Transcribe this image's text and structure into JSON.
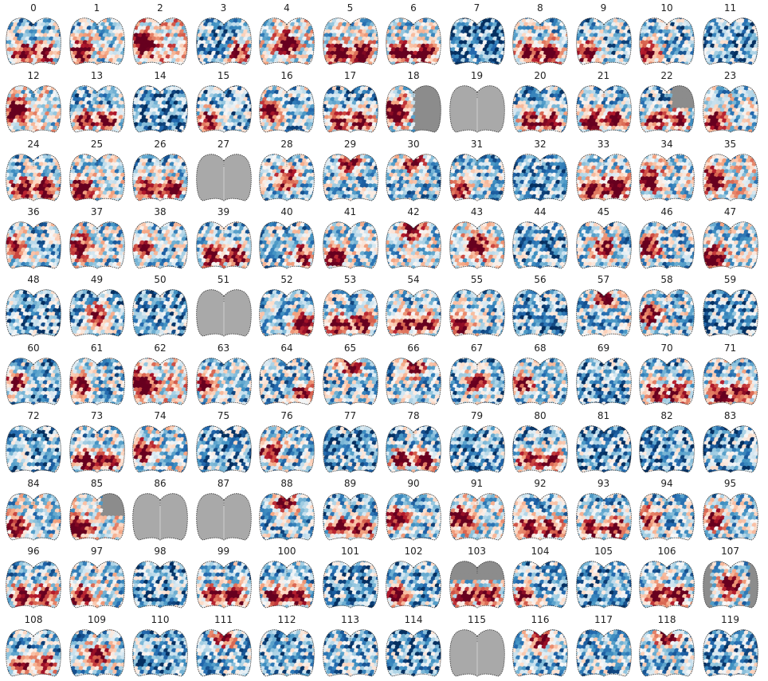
{
  "layout": {
    "columns": 12
  },
  "colormap": {
    "name": "RdBu",
    "stops": [
      "#053061",
      "#2166ac",
      "#4393c3",
      "#92c5de",
      "#d1e5f0",
      "#f7f7f7",
      "#fddbc7",
      "#f4a582",
      "#d6604d",
      "#b2182b",
      "#67001f"
    ],
    "masked_color": "#8c8c8c",
    "blank_fill": "#a9a9a9",
    "outline_color": "#333333"
  },
  "panels": [
    {
      "label": "0",
      "bias": -0.35,
      "hot": "bottom"
    },
    {
      "label": "1",
      "bias": -0.2,
      "hot": "bottom-left"
    },
    {
      "label": "2",
      "bias": 0.1,
      "hot": "left"
    },
    {
      "label": "3",
      "bias": -0.4,
      "hot": "bottom-right"
    },
    {
      "label": "4",
      "bias": -0.1,
      "hot": "center"
    },
    {
      "label": "5",
      "bias": -0.15,
      "hot": "bottom"
    },
    {
      "label": "6",
      "bias": -0.2,
      "hot": "bottom"
    },
    {
      "label": "7",
      "bias": -0.6,
      "hot": "none"
    },
    {
      "label": "8",
      "bias": -0.25,
      "hot": "bottom"
    },
    {
      "label": "9",
      "bias": -0.35,
      "hot": "bottom-left"
    },
    {
      "label": "10",
      "bias": -0.35,
      "hot": "bottom-left"
    },
    {
      "label": "11",
      "bias": -0.45,
      "hot": "none"
    },
    {
      "label": "12",
      "bias": -0.1,
      "hot": "left"
    },
    {
      "label": "13",
      "bias": -0.4,
      "hot": "bottom"
    },
    {
      "label": "14",
      "bias": -0.5,
      "hot": "none"
    },
    {
      "label": "15",
      "bias": -0.4,
      "hot": "bottom-left"
    },
    {
      "label": "16",
      "bias": -0.3,
      "hot": "left"
    },
    {
      "label": "17",
      "bias": -0.4,
      "hot": "bottom"
    },
    {
      "label": "18",
      "bias": 0.0,
      "hot": "left",
      "mask": "right"
    },
    {
      "label": "19",
      "blank": true
    },
    {
      "label": "20",
      "bias": -0.4,
      "hot": "bottom"
    },
    {
      "label": "21",
      "bias": -0.3,
      "hot": "bottom"
    },
    {
      "label": "22",
      "bias": -0.4,
      "hot": "bottom",
      "mask": "top-right"
    },
    {
      "label": "23",
      "bias": -0.2,
      "hot": "bottom-left"
    },
    {
      "label": "24",
      "bias": -0.3,
      "hot": "bottom"
    },
    {
      "label": "25",
      "bias": -0.2,
      "hot": "bottom-left"
    },
    {
      "label": "26",
      "bias": -0.3,
      "hot": "bottom"
    },
    {
      "label": "27",
      "blank": true
    },
    {
      "label": "28",
      "bias": -0.3,
      "hot": "center"
    },
    {
      "label": "29",
      "bias": -0.3,
      "hot": "top"
    },
    {
      "label": "30",
      "bias": -0.3,
      "hot": "top"
    },
    {
      "label": "31",
      "bias": -0.3,
      "hot": "bottom-left"
    },
    {
      "label": "32",
      "bias": -0.45,
      "hot": "none"
    },
    {
      "label": "33",
      "bias": -0.1,
      "hot": "bottom"
    },
    {
      "label": "34",
      "bias": -0.15,
      "hot": "left"
    },
    {
      "label": "35",
      "bias": -0.1,
      "hot": "left"
    },
    {
      "label": "36",
      "bias": -0.3,
      "hot": "left"
    },
    {
      "label": "37",
      "bias": -0.2,
      "hot": "left"
    },
    {
      "label": "38",
      "bias": -0.3,
      "hot": "left"
    },
    {
      "label": "39",
      "bias": -0.3,
      "hot": "bottom"
    },
    {
      "label": "40",
      "bias": -0.3,
      "hot": "bottom-right"
    },
    {
      "label": "41",
      "bias": -0.2,
      "hot": "bottom-left"
    },
    {
      "label": "42",
      "bias": -0.2,
      "hot": "top"
    },
    {
      "label": "43",
      "bias": -0.1,
      "hot": "center"
    },
    {
      "label": "44",
      "bias": -0.4,
      "hot": "none"
    },
    {
      "label": "45",
      "bias": -0.3,
      "hot": "center"
    },
    {
      "label": "46",
      "bias": -0.3,
      "hot": "left"
    },
    {
      "label": "47",
      "bias": -0.2,
      "hot": "bottom-left"
    },
    {
      "label": "48",
      "bias": -0.45,
      "hot": "none"
    },
    {
      "label": "49",
      "bias": -0.4,
      "hot": "center"
    },
    {
      "label": "50",
      "bias": -0.45,
      "hot": "none"
    },
    {
      "label": "51",
      "blank": true
    },
    {
      "label": "52",
      "bias": -0.3,
      "hot": "bottom-right"
    },
    {
      "label": "53",
      "bias": -0.3,
      "hot": "bottom"
    },
    {
      "label": "54",
      "bias": -0.3,
      "hot": "bottom"
    },
    {
      "label": "55",
      "bias": -0.3,
      "hot": "bottom-left"
    },
    {
      "label": "56",
      "bias": -0.45,
      "hot": "none"
    },
    {
      "label": "57",
      "bias": -0.3,
      "hot": "top"
    },
    {
      "label": "58",
      "bias": -0.3,
      "hot": "left"
    },
    {
      "label": "59",
      "bias": -0.45,
      "hot": "none"
    },
    {
      "label": "60",
      "bias": -0.4,
      "hot": "left"
    },
    {
      "label": "61",
      "bias": -0.3,
      "hot": "left"
    },
    {
      "label": "62",
      "bias": 0.05,
      "hot": "left"
    },
    {
      "label": "63",
      "bias": -0.3,
      "hot": "left"
    },
    {
      "label": "64",
      "bias": -0.35,
      "hot": "bottom-right"
    },
    {
      "label": "65",
      "bias": -0.3,
      "hot": "top"
    },
    {
      "label": "66",
      "bias": -0.3,
      "hot": "top"
    },
    {
      "label": "67",
      "bias": -0.4,
      "hot": "center"
    },
    {
      "label": "68",
      "bias": -0.3,
      "hot": "left"
    },
    {
      "label": "69",
      "bias": -0.45,
      "hot": "none"
    },
    {
      "label": "70",
      "bias": -0.35,
      "hot": "bottom"
    },
    {
      "label": "71",
      "bias": -0.25,
      "hot": "bottom"
    },
    {
      "label": "72",
      "bias": -0.45,
      "hot": "none"
    },
    {
      "label": "73",
      "bias": -0.3,
      "hot": "bottom"
    },
    {
      "label": "74",
      "bias": -0.2,
      "hot": "left"
    },
    {
      "label": "75",
      "bias": -0.45,
      "hot": "none"
    },
    {
      "label": "76",
      "bias": -0.3,
      "hot": "left"
    },
    {
      "label": "77",
      "bias": -0.45,
      "hot": "none"
    },
    {
      "label": "78",
      "bias": -0.4,
      "hot": "bottom"
    },
    {
      "label": "79",
      "bias": -0.45,
      "hot": "none"
    },
    {
      "label": "80",
      "bias": -0.4,
      "hot": "bottom"
    },
    {
      "label": "81",
      "bias": -0.45,
      "hot": "none"
    },
    {
      "label": "82",
      "bias": -0.45,
      "hot": "none"
    },
    {
      "label": "83",
      "bias": -0.45,
      "hot": "none"
    },
    {
      "label": "84",
      "bias": -0.2,
      "hot": "bottom-left"
    },
    {
      "label": "85",
      "bias": -0.1,
      "hot": "bottom-left",
      "mask": "top-right"
    },
    {
      "label": "86",
      "blank": true
    },
    {
      "label": "87",
      "blank": true
    },
    {
      "label": "88",
      "bias": -0.3,
      "hot": "top"
    },
    {
      "label": "89",
      "bias": -0.4,
      "hot": "bottom"
    },
    {
      "label": "90",
      "bias": -0.3,
      "hot": "left"
    },
    {
      "label": "91",
      "bias": -0.1,
      "hot": "left"
    },
    {
      "label": "92",
      "bias": -0.3,
      "hot": "bottom"
    },
    {
      "label": "93",
      "bias": -0.35,
      "hot": "bottom"
    },
    {
      "label": "94",
      "bias": -0.3,
      "hot": "left"
    },
    {
      "label": "95",
      "bias": -0.3,
      "hot": "left"
    },
    {
      "label": "96",
      "bias": -0.3,
      "hot": "bottom"
    },
    {
      "label": "97",
      "bias": -0.2,
      "hot": "bottom-left"
    },
    {
      "label": "98",
      "bias": -0.45,
      "hot": "none"
    },
    {
      "label": "99",
      "bias": -0.35,
      "hot": "bottom"
    },
    {
      "label": "100",
      "bias": -0.35,
      "hot": "bottom"
    },
    {
      "label": "101",
      "bias": -0.45,
      "hot": "none"
    },
    {
      "label": "102",
      "bias": -0.4,
      "hot": "bottom-left"
    },
    {
      "label": "103",
      "bias": -0.3,
      "hot": "bottom",
      "mask": "top"
    },
    {
      "label": "104",
      "bias": -0.4,
      "hot": "bottom-left"
    },
    {
      "label": "105",
      "bias": -0.45,
      "hot": "none"
    },
    {
      "label": "106",
      "bias": -0.3,
      "hot": "bottom"
    },
    {
      "label": "107",
      "bias": -0.25,
      "hot": "center",
      "mask": "sides"
    },
    {
      "label": "108",
      "bias": -0.4,
      "hot": "bottom"
    },
    {
      "label": "109",
      "bias": -0.3,
      "hot": "center"
    },
    {
      "label": "110",
      "bias": -0.45,
      "hot": "none"
    },
    {
      "label": "111",
      "bias": -0.4,
      "hot": "top"
    },
    {
      "label": "112",
      "bias": -0.4,
      "hot": "none"
    },
    {
      "label": "113",
      "bias": -0.4,
      "hot": "none"
    },
    {
      "label": "114",
      "bias": -0.45,
      "hot": "none"
    },
    {
      "label": "115",
      "blank": true
    },
    {
      "label": "116",
      "bias": -0.3,
      "hot": "top"
    },
    {
      "label": "117",
      "bias": -0.35,
      "hot": "none"
    },
    {
      "label": "118",
      "bias": -0.3,
      "hot": "top"
    },
    {
      "label": "119",
      "bias": -0.4,
      "hot": "none"
    }
  ]
}
